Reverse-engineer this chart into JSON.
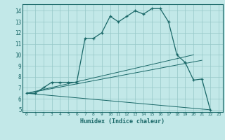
{
  "title": "",
  "xlabel": "Humidex (Indice chaleur)",
  "bg_color": "#c2e8e8",
  "grid_color": "#96c8c8",
  "line_color": "#1a6868",
  "xlim": [
    -0.5,
    23.5
  ],
  "ylim": [
    4.8,
    14.6
  ],
  "xticks": [
    0,
    1,
    2,
    3,
    4,
    5,
    6,
    7,
    8,
    9,
    10,
    11,
    12,
    13,
    14,
    15,
    16,
    17,
    18,
    19,
    20,
    21,
    22,
    23
  ],
  "yticks": [
    5,
    6,
    7,
    8,
    9,
    10,
    11,
    12,
    13,
    14
  ],
  "curve1_x": [
    0,
    1,
    2,
    3,
    4,
    5,
    6,
    7,
    8,
    9,
    10,
    11,
    12,
    13,
    14,
    15,
    16,
    17,
    18,
    19,
    20,
    21,
    22
  ],
  "curve1_y": [
    6.5,
    6.5,
    7.0,
    7.5,
    7.5,
    7.5,
    7.5,
    11.5,
    11.5,
    12.0,
    13.5,
    13.0,
    13.5,
    14.0,
    13.7,
    14.2,
    14.2,
    13.0,
    10.0,
    9.3,
    7.7,
    7.8,
    5.0
  ],
  "curve2_x": [
    0,
    20
  ],
  "curve2_y": [
    6.5,
    10.0
  ],
  "curve3_x": [
    0,
    21
  ],
  "curve3_y": [
    6.5,
    9.5
  ],
  "curve4_x": [
    0,
    22
  ],
  "curve4_y": [
    6.5,
    5.0
  ]
}
